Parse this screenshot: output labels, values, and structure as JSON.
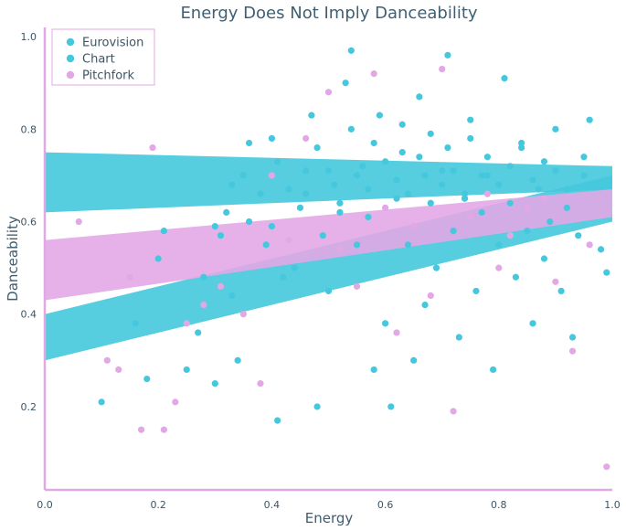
{
  "chart_data": {
    "type": "scatter",
    "title": "Energy Does Not Imply Danceability",
    "xlabel": "Energy",
    "ylabel": "Danceability",
    "xlim": [
      0.0,
      1.0
    ],
    "ylim": [
      0.02,
      1.02
    ],
    "xticks": [
      "0.0",
      "0.2",
      "0.4",
      "0.6",
      "0.8",
      "1.0"
    ],
    "yticks": [
      "0.2",
      "0.4",
      "0.6",
      "0.8",
      "1.0"
    ],
    "grid": false,
    "legend_position": "top-left",
    "series": [
      {
        "name": "Eurovision",
        "color": "#45c8dd",
        "points": [
          [
            0.1,
            0.21
          ],
          [
            0.16,
            0.38
          ],
          [
            0.18,
            0.26
          ],
          [
            0.2,
            0.52
          ],
          [
            0.21,
            0.58
          ],
          [
            0.25,
            0.28
          ],
          [
            0.27,
            0.36
          ],
          [
            0.28,
            0.48
          ],
          [
            0.3,
            0.25
          ],
          [
            0.31,
            0.57
          ],
          [
            0.32,
            0.62
          ],
          [
            0.33,
            0.44
          ],
          [
            0.34,
            0.3
          ],
          [
            0.35,
            0.7
          ],
          [
            0.36,
            0.77
          ],
          [
            0.38,
            0.66
          ],
          [
            0.39,
            0.55
          ],
          [
            0.4,
            0.59
          ],
          [
            0.41,
            0.73
          ],
          [
            0.41,
            0.17
          ],
          [
            0.42,
            0.48
          ],
          [
            0.44,
            0.5
          ],
          [
            0.45,
            0.63
          ],
          [
            0.46,
            0.71
          ],
          [
            0.47,
            0.83
          ],
          [
            0.48,
            0.2
          ],
          [
            0.49,
            0.57
          ],
          [
            0.5,
            0.45
          ],
          [
            0.51,
            0.68
          ],
          [
            0.52,
            0.62
          ],
          [
            0.53,
            0.9
          ],
          [
            0.54,
            0.97
          ],
          [
            0.55,
            0.55
          ],
          [
            0.56,
            0.72
          ],
          [
            0.57,
            0.61
          ],
          [
            0.58,
            0.28
          ],
          [
            0.59,
            0.83
          ],
          [
            0.6,
            0.38
          ],
          [
            0.61,
            0.2
          ],
          [
            0.62,
            0.65
          ],
          [
            0.63,
            0.75
          ],
          [
            0.64,
            0.55
          ],
          [
            0.65,
            0.3
          ],
          [
            0.66,
            0.87
          ],
          [
            0.67,
            0.42
          ],
          [
            0.68,
            0.64
          ],
          [
            0.69,
            0.5
          ],
          [
            0.7,
            0.71
          ],
          [
            0.71,
            0.96
          ],
          [
            0.72,
            0.58
          ],
          [
            0.73,
            0.35
          ],
          [
            0.74,
            0.66
          ],
          [
            0.75,
            0.82
          ],
          [
            0.76,
            0.45
          ],
          [
            0.77,
            0.62
          ],
          [
            0.78,
            0.7
          ],
          [
            0.79,
            0.28
          ],
          [
            0.8,
            0.55
          ],
          [
            0.81,
            0.91
          ],
          [
            0.82,
            0.64
          ],
          [
            0.83,
            0.48
          ],
          [
            0.84,
            0.76
          ],
          [
            0.85,
            0.58
          ],
          [
            0.86,
            0.38
          ],
          [
            0.87,
            0.67
          ],
          [
            0.88,
            0.52
          ],
          [
            0.89,
            0.6
          ],
          [
            0.9,
            0.8
          ],
          [
            0.91,
            0.45
          ],
          [
            0.92,
            0.63
          ],
          [
            0.93,
            0.35
          ],
          [
            0.94,
            0.57
          ],
          [
            0.95,
            0.7
          ],
          [
            0.96,
            0.82
          ],
          [
            0.98,
            0.54
          ],
          [
            0.99,
            0.49
          ]
        ]
      },
      {
        "name": "Chart",
        "color": "#45c8dd",
        "points": [
          [
            0.3,
            0.59
          ],
          [
            0.33,
            0.68
          ],
          [
            0.36,
            0.6
          ],
          [
            0.4,
            0.78
          ],
          [
            0.43,
            0.67
          ],
          [
            0.46,
            0.66
          ],
          [
            0.48,
            0.76
          ],
          [
            0.5,
            0.71
          ],
          [
            0.52,
            0.64
          ],
          [
            0.54,
            0.8
          ],
          [
            0.55,
            0.7
          ],
          [
            0.57,
            0.67
          ],
          [
            0.58,
            0.77
          ],
          [
            0.6,
            0.73
          ],
          [
            0.62,
            0.69
          ],
          [
            0.63,
            0.81
          ],
          [
            0.64,
            0.66
          ],
          [
            0.66,
            0.74
          ],
          [
            0.67,
            0.7
          ],
          [
            0.68,
            0.79
          ],
          [
            0.7,
            0.68
          ],
          [
            0.71,
            0.76
          ],
          [
            0.72,
            0.71
          ],
          [
            0.74,
            0.65
          ],
          [
            0.75,
            0.78
          ],
          [
            0.77,
            0.7
          ],
          [
            0.78,
            0.74
          ],
          [
            0.8,
            0.68
          ],
          [
            0.82,
            0.72
          ],
          [
            0.84,
            0.77
          ],
          [
            0.86,
            0.69
          ],
          [
            0.88,
            0.73
          ],
          [
            0.9,
            0.71
          ],
          [
            0.92,
            0.67
          ],
          [
            0.95,
            0.74
          ]
        ]
      },
      {
        "name": "Pitchfork",
        "color": "#e2a8e6",
        "points": [
          [
            0.06,
            0.6
          ],
          [
            0.11,
            0.3
          ],
          [
            0.13,
            0.28
          ],
          [
            0.15,
            0.48
          ],
          [
            0.17,
            0.15
          ],
          [
            0.19,
            0.76
          ],
          [
            0.21,
            0.15
          ],
          [
            0.23,
            0.21
          ],
          [
            0.25,
            0.38
          ],
          [
            0.28,
            0.42
          ],
          [
            0.31,
            0.46
          ],
          [
            0.35,
            0.4
          ],
          [
            0.38,
            0.25
          ],
          [
            0.4,
            0.7
          ],
          [
            0.43,
            0.56
          ],
          [
            0.46,
            0.78
          ],
          [
            0.5,
            0.88
          ],
          [
            0.52,
            0.54
          ],
          [
            0.55,
            0.46
          ],
          [
            0.58,
            0.92
          ],
          [
            0.6,
            0.63
          ],
          [
            0.62,
            0.36
          ],
          [
            0.65,
            0.59
          ],
          [
            0.68,
            0.44
          ],
          [
            0.7,
            0.93
          ],
          [
            0.72,
            0.19
          ],
          [
            0.75,
            0.61
          ],
          [
            0.78,
            0.66
          ],
          [
            0.8,
            0.5
          ],
          [
            0.82,
            0.57
          ],
          [
            0.85,
            0.63
          ],
          [
            0.88,
            0.65
          ],
          [
            0.9,
            0.47
          ],
          [
            0.93,
            0.32
          ],
          [
            0.96,
            0.55
          ],
          [
            0.99,
            0.07
          ]
        ]
      }
    ],
    "regression_bands": [
      {
        "series": "Eurovision",
        "color": "#45c8dd",
        "upper": [
          [
            0.0,
            0.4
          ],
          [
            1.0,
            0.7
          ]
        ],
        "lower": [
          [
            0.0,
            0.3
          ],
          [
            1.0,
            0.6
          ]
        ]
      },
      {
        "series": "Chart",
        "color": "#45c8dd",
        "upper": [
          [
            0.0,
            0.75
          ],
          [
            1.0,
            0.72
          ]
        ],
        "lower": [
          [
            0.0,
            0.62
          ],
          [
            1.0,
            0.67
          ]
        ]
      },
      {
        "series": "Pitchfork",
        "color": "#e2a8e6",
        "upper": [
          [
            0.0,
            0.56
          ],
          [
            1.0,
            0.67
          ]
        ],
        "lower": [
          [
            0.0,
            0.43
          ],
          [
            1.0,
            0.61
          ]
        ]
      }
    ]
  },
  "legend": {
    "items": [
      {
        "label": "Eurovision",
        "color": "#45c8dd"
      },
      {
        "label": "Chart",
        "color": "#45c8dd"
      },
      {
        "label": "Pitchfork",
        "color": "#e2a8e6"
      }
    ]
  },
  "axis_color": "#e2a8e6"
}
